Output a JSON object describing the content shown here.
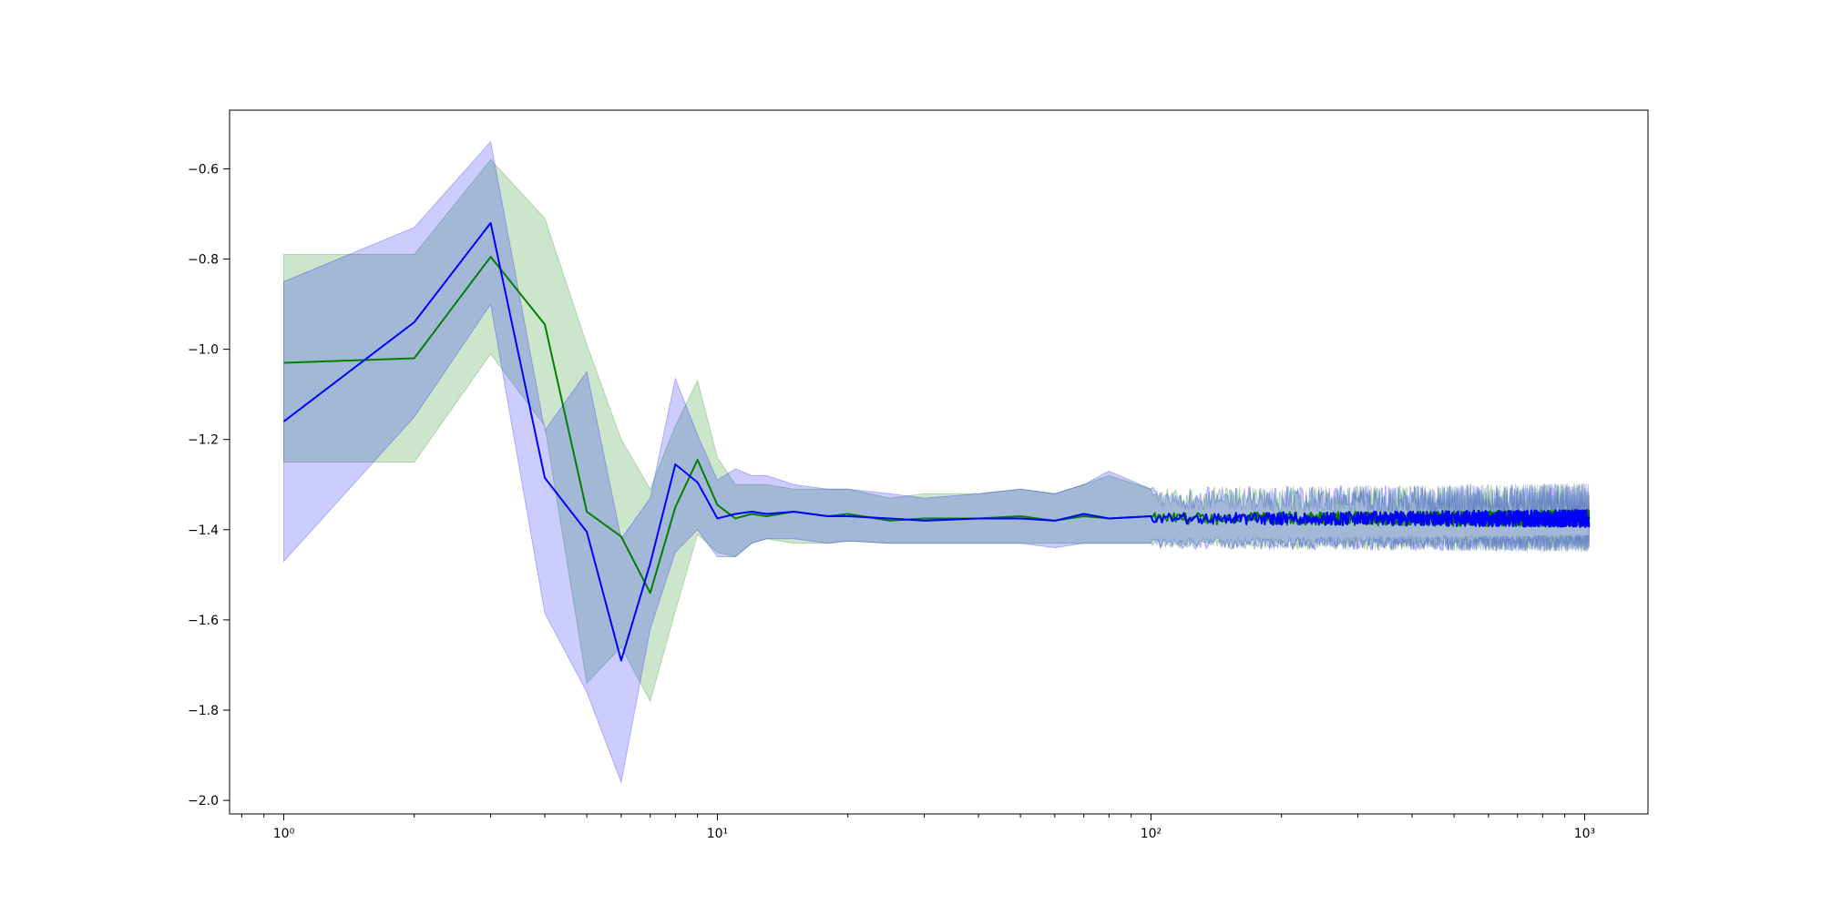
{
  "chart_data": {
    "type": "line",
    "title": "",
    "xlabel": "",
    "ylabel": "",
    "xscale": "log",
    "xlim": [
      0.75,
      1400
    ],
    "ylim": [
      -2.03,
      -0.47
    ],
    "grid": false,
    "legend": "none",
    "x_ticks": [
      {
        "value": 1,
        "label": "10⁰"
      },
      {
        "value": 10,
        "label": "10¹"
      },
      {
        "value": 100,
        "label": "10²"
      },
      {
        "value": 1000,
        "label": "10³"
      }
    ],
    "y_ticks": [
      {
        "value": -0.6,
        "label": "−0.6"
      },
      {
        "value": -0.8,
        "label": "−0.8"
      },
      {
        "value": -1.0,
        "label": "−1.0"
      },
      {
        "value": -1.2,
        "label": "−1.2"
      },
      {
        "value": -1.4,
        "label": "−1.4"
      },
      {
        "value": -1.6,
        "label": "−1.6"
      },
      {
        "value": -1.8,
        "label": "−1.8"
      },
      {
        "value": -2.0,
        "label": "−2.0"
      }
    ],
    "x_max": 1024,
    "series": [
      {
        "color": "#008000",
        "band_color": "#008000",
        "band_opacity": 0.2,
        "x": [
          1,
          2,
          3,
          4,
          5,
          6,
          7,
          8,
          9,
          10,
          11,
          12,
          13,
          15,
          18,
          20,
          25,
          30,
          40,
          50,
          60,
          70,
          80,
          100
        ],
        "values": [
          -1.03,
          -1.02,
          -0.795,
          -0.945,
          -1.36,
          -1.415,
          -1.54,
          -1.35,
          -1.245,
          -1.345,
          -1.375,
          -1.365,
          -1.37,
          -1.36,
          -1.37,
          -1.365,
          -1.38,
          -1.375,
          -1.375,
          -1.37,
          -1.38,
          -1.37,
          -1.375,
          -1.37
        ],
        "lower": [
          -1.25,
          -1.25,
          -1.01,
          -1.17,
          -1.74,
          -1.66,
          -1.78,
          -1.58,
          -1.41,
          -1.45,
          -1.46,
          -1.43,
          -1.42,
          -1.43,
          -1.43,
          -1.425,
          -1.43,
          -1.43,
          -1.43,
          -1.43,
          -1.43,
          -1.43,
          -1.43,
          -1.43
        ],
        "upper": [
          -0.79,
          -0.79,
          -0.58,
          -0.71,
          -0.99,
          -1.2,
          -1.31,
          -1.17,
          -1.07,
          -1.24,
          -1.3,
          -1.3,
          -1.3,
          -1.31,
          -1.31,
          -1.31,
          -1.33,
          -1.32,
          -1.32,
          -1.31,
          -1.32,
          -1.3,
          -1.28,
          -1.31
        ]
      },
      {
        "color": "#0000ff",
        "band_color": "#0000ff",
        "band_opacity": 0.2,
        "x": [
          1,
          2,
          3,
          4,
          5,
          6,
          7,
          8,
          9,
          10,
          11,
          12,
          13,
          15,
          18,
          20,
          25,
          30,
          40,
          50,
          60,
          70,
          80,
          100
        ],
        "values": [
          -1.16,
          -0.94,
          -0.72,
          -1.285,
          -1.405,
          -1.69,
          -1.475,
          -1.255,
          -1.295,
          -1.375,
          -1.365,
          -1.36,
          -1.365,
          -1.36,
          -1.37,
          -1.37,
          -1.375,
          -1.38,
          -1.375,
          -1.375,
          -1.38,
          -1.365,
          -1.375,
          -1.37
        ],
        "lower": [
          -1.47,
          -1.15,
          -0.9,
          -1.585,
          -1.76,
          -1.96,
          -1.62,
          -1.45,
          -1.4,
          -1.46,
          -1.46,
          -1.43,
          -1.42,
          -1.42,
          -1.43,
          -1.425,
          -1.43,
          -1.43,
          -1.43,
          -1.43,
          -1.44,
          -1.43,
          -1.43,
          -1.43
        ],
        "upper": [
          -0.85,
          -0.73,
          -0.54,
          -1.18,
          -1.05,
          -1.42,
          -1.33,
          -1.065,
          -1.19,
          -1.29,
          -1.265,
          -1.28,
          -1.28,
          -1.3,
          -1.31,
          -1.31,
          -1.32,
          -1.33,
          -1.32,
          -1.31,
          -1.32,
          -1.3,
          -1.27,
          -1.31
        ]
      }
    ],
    "tail": {
      "x_start": 100,
      "x_end": 1024,
      "mean": -1.375,
      "line_noise": 0.012,
      "band_low": -1.43,
      "band_high": -1.32,
      "band_spike": 0.04
    }
  }
}
